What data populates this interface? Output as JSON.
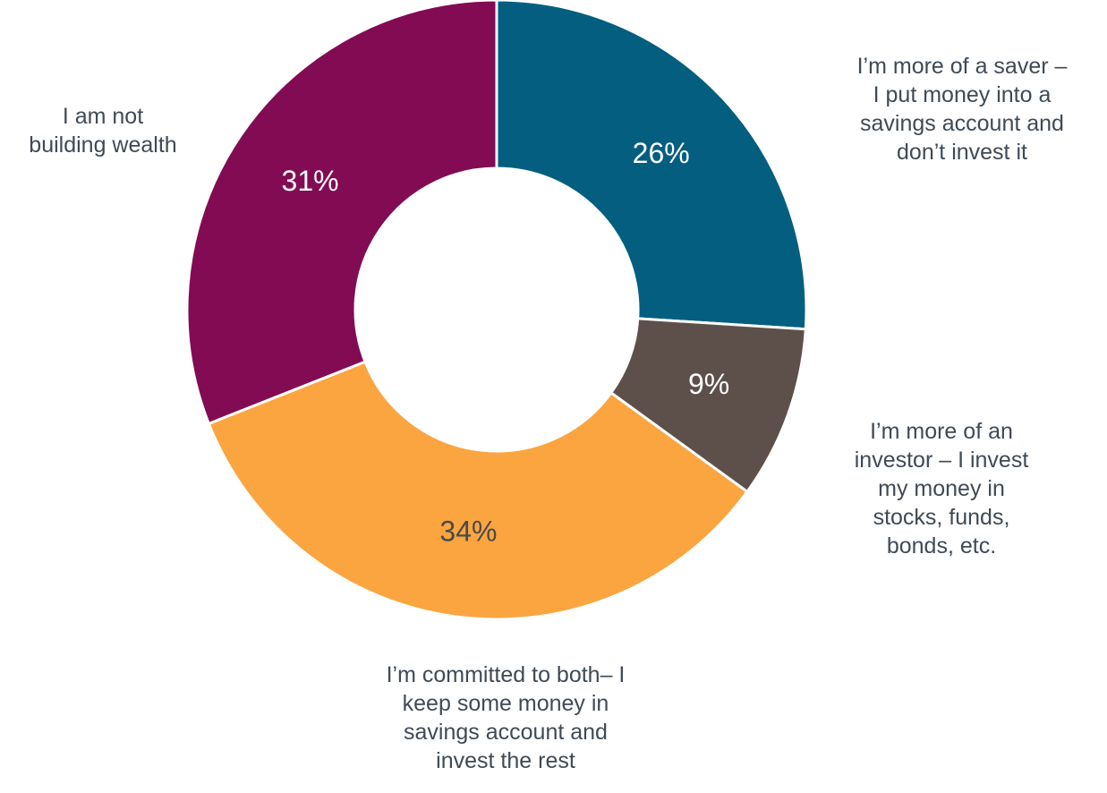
{
  "chart_data": {
    "type": "pie",
    "title": "",
    "donut": true,
    "categories": [
      "I’m more of a saver –\nI put money into a\nsavings account and\ndon’t invest it",
      "I’m more of an\ninvestor – I invest\nmy money in\nstocks, funds,\nbonds, etc.",
      "I’m committed to both– I\nkeep some money in\nsavings account and\ninvest the rest",
      "I am not\nbuilding wealth"
    ],
    "values": [
      26,
      9,
      34,
      31
    ],
    "value_labels": [
      "26%",
      "9%",
      "34%",
      "31%"
    ],
    "colors": [
      "#035e80",
      "#5d504b",
      "#fba540",
      "#820b53"
    ],
    "label_colors": [
      "#ffffff",
      "#ffffff",
      "#4a4a4a",
      "#ffffff"
    ],
    "legend": "none"
  }
}
